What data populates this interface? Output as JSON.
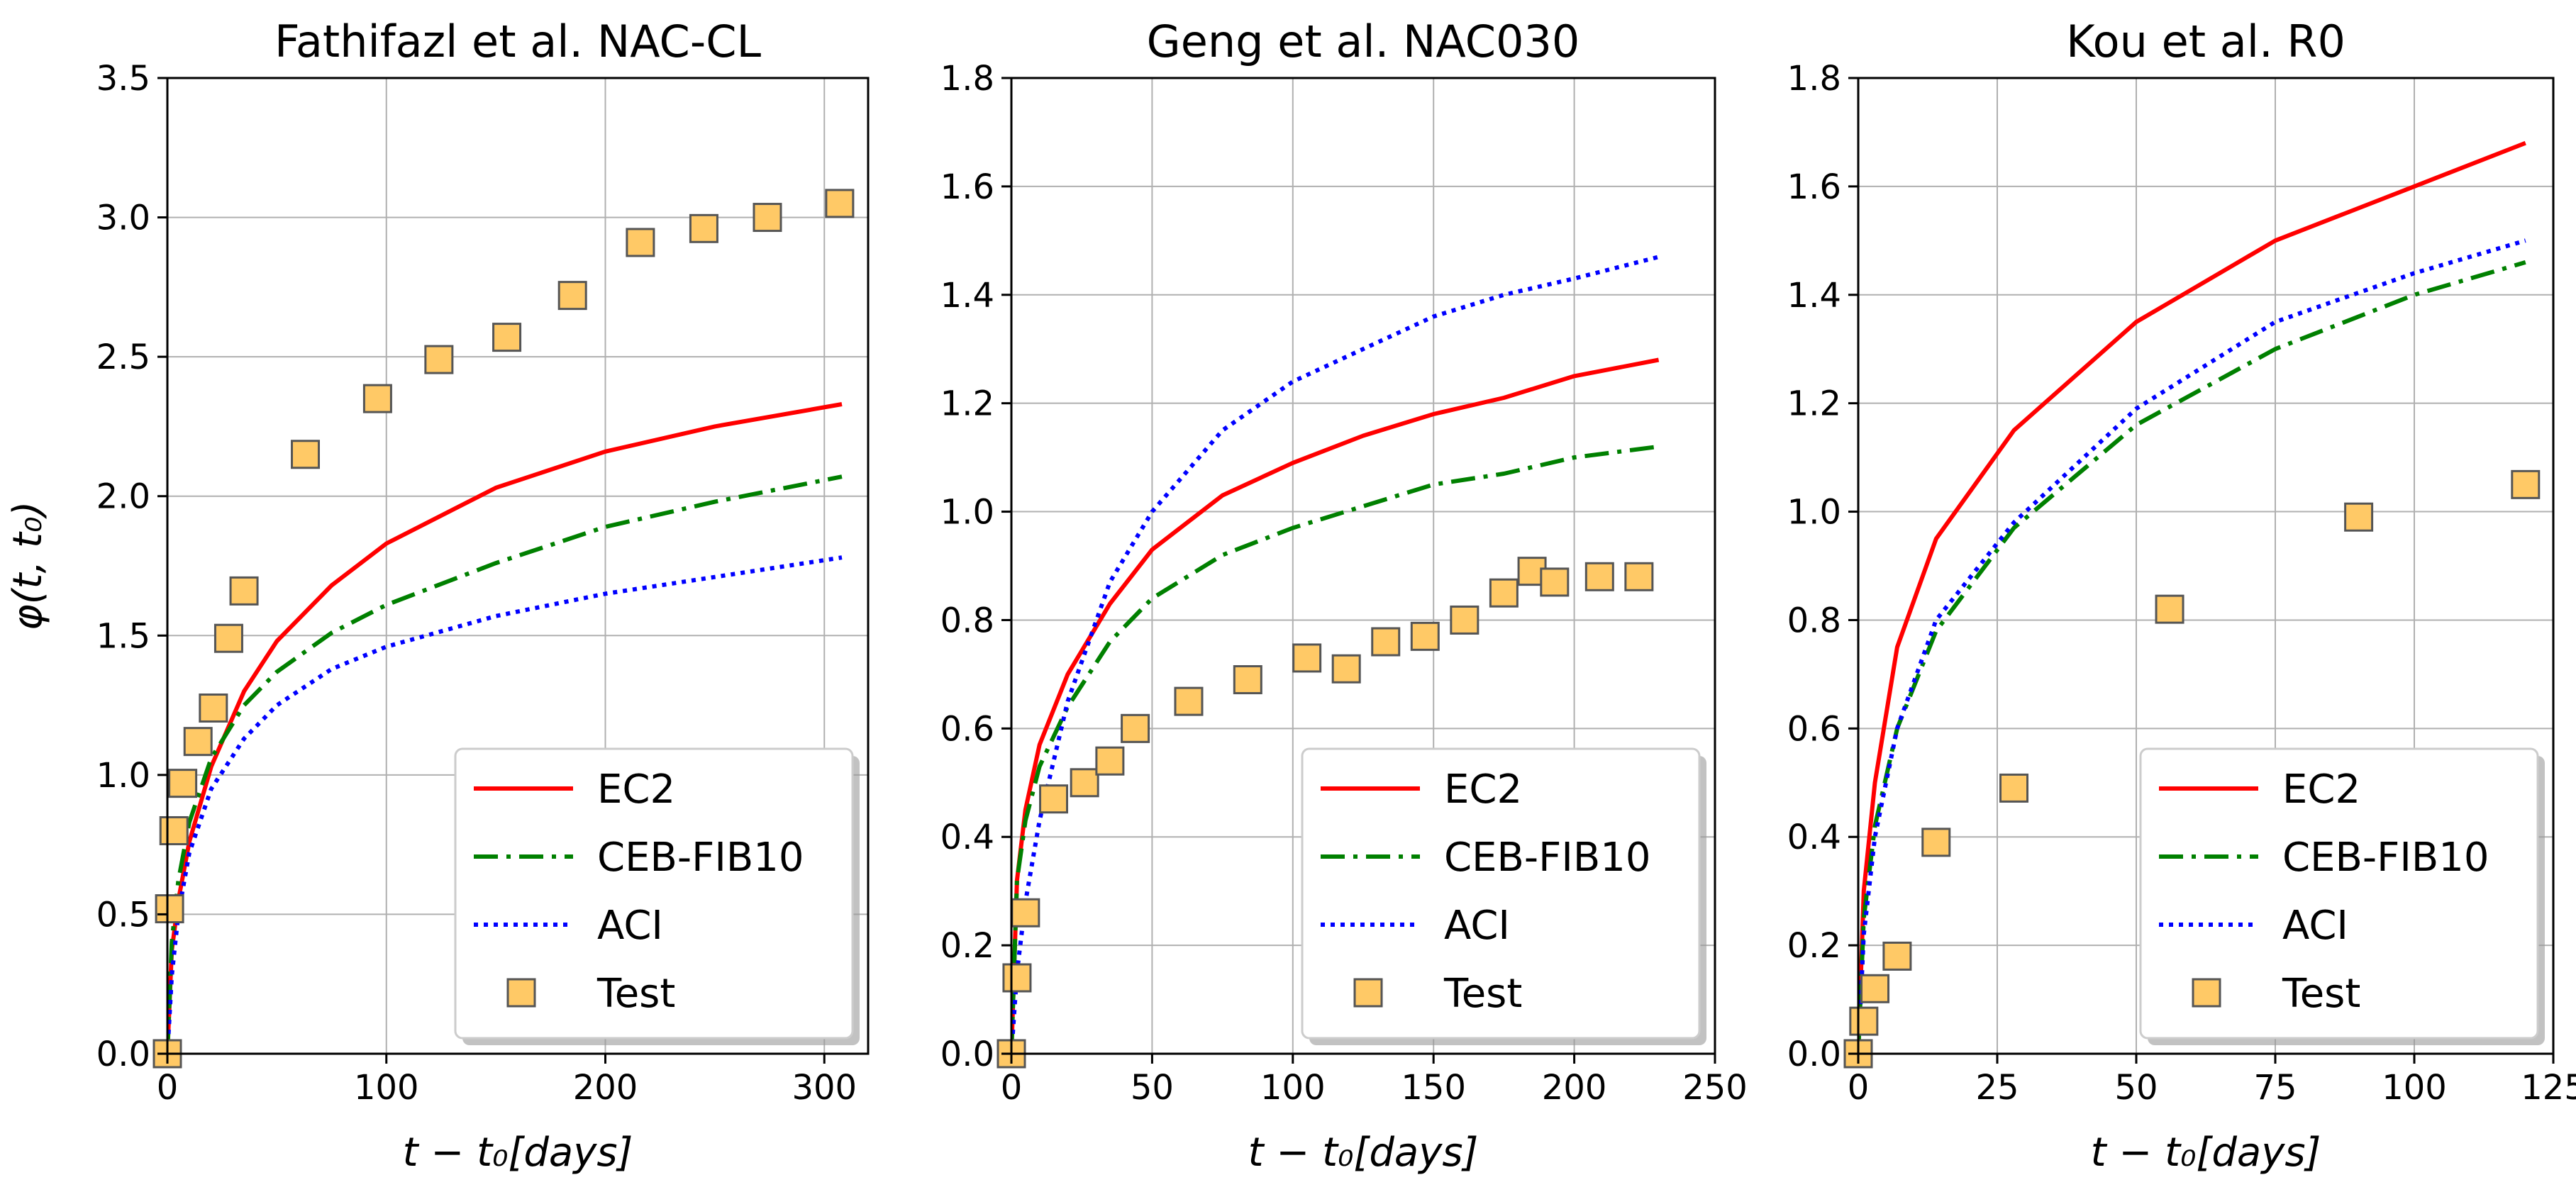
{
  "chart_data": [
    {
      "type": "line",
      "title": "Fathifazl et al.  NAC-CL",
      "xlabel": "t − t₀[days]",
      "ylabel": "φ(t, t₀)",
      "xlim": [
        0,
        320
      ],
      "ylim": [
        0,
        3.5
      ],
      "xticks": [
        0,
        100,
        200,
        300
      ],
      "yticks": [
        "0.0",
        "0.5",
        "1.0",
        "1.5",
        "2.0",
        "2.5",
        "3.0",
        "3.5"
      ],
      "grid": true,
      "legend_position": "bottom-right",
      "series": [
        {
          "name": "EC2",
          "style": "solid",
          "color": "#ff0000",
          "x": [
            0,
            2,
            5,
            10,
            20,
            35,
            50,
            75,
            100,
            150,
            200,
            250,
            308
          ],
          "y": [
            0,
            0.37,
            0.55,
            0.76,
            1.03,
            1.3,
            1.48,
            1.68,
            1.83,
            2.03,
            2.16,
            2.25,
            2.33
          ]
        },
        {
          "name": "CEB-FIB10",
          "style": "dashdot",
          "color": "#008000",
          "x": [
            0,
            2,
            5,
            10,
            20,
            35,
            50,
            75,
            100,
            150,
            200,
            250,
            308
          ],
          "y": [
            0,
            0.4,
            0.62,
            0.83,
            1.06,
            1.25,
            1.37,
            1.51,
            1.61,
            1.76,
            1.89,
            1.98,
            2.07
          ]
        },
        {
          "name": "ACI",
          "style": "dotted",
          "color": "#0000ff",
          "x": [
            0,
            2,
            5,
            10,
            20,
            35,
            50,
            75,
            100,
            150,
            200,
            250,
            308
          ],
          "y": [
            0,
            0.28,
            0.5,
            0.72,
            0.95,
            1.13,
            1.25,
            1.38,
            1.46,
            1.57,
            1.65,
            1.71,
            1.78
          ]
        },
        {
          "name": "Test",
          "style": "marker",
          "color": "#ffc966",
          "x": [
            0,
            1,
            3,
            7,
            14,
            21,
            28,
            35,
            63,
            96,
            124,
            155,
            185,
            216,
            245,
            274,
            307
          ],
          "y": [
            0,
            0.52,
            0.8,
            0.97,
            1.12,
            1.24,
            1.49,
            1.66,
            2.15,
            2.35,
            2.49,
            2.57,
            2.72,
            2.91,
            2.96,
            3.0,
            3.05
          ]
        }
      ]
    },
    {
      "type": "line",
      "title": "Geng et al.  NAC030",
      "xlabel": "t − t₀[days]",
      "ylabel": "",
      "xlim": [
        0,
        250
      ],
      "ylim": [
        0,
        1.8
      ],
      "xticks": [
        0,
        50,
        100,
        150,
        200,
        250
      ],
      "yticks": [
        "0.0",
        "0.2",
        "0.4",
        "0.6",
        "0.8",
        "1.0",
        "1.2",
        "1.4",
        "1.6",
        "1.8"
      ],
      "grid": true,
      "legend_position": "bottom-right",
      "series": [
        {
          "name": "EC2",
          "style": "solid",
          "color": "#ff0000",
          "x": [
            0,
            2,
            5,
            10,
            20,
            35,
            50,
            75,
            100,
            125,
            150,
            175,
            200,
            230
          ],
          "y": [
            0,
            0.32,
            0.45,
            0.57,
            0.7,
            0.83,
            0.93,
            1.03,
            1.09,
            1.14,
            1.18,
            1.21,
            1.25,
            1.28
          ]
        },
        {
          "name": "CEB-FIB10",
          "style": "dashdot",
          "color": "#008000",
          "x": [
            0,
            2,
            5,
            10,
            20,
            35,
            50,
            75,
            100,
            125,
            150,
            175,
            200,
            230
          ],
          "y": [
            0,
            0.32,
            0.43,
            0.53,
            0.64,
            0.76,
            0.84,
            0.92,
            0.97,
            1.01,
            1.05,
            1.07,
            1.1,
            1.12
          ]
        },
        {
          "name": "ACI",
          "style": "dotted",
          "color": "#0000ff",
          "x": [
            0,
            2,
            5,
            10,
            20,
            35,
            50,
            75,
            100,
            125,
            150,
            175,
            200,
            230
          ],
          "y": [
            0,
            0.15,
            0.28,
            0.43,
            0.65,
            0.87,
            1.0,
            1.15,
            1.24,
            1.3,
            1.36,
            1.4,
            1.43,
            1.47
          ]
        },
        {
          "name": "Test",
          "style": "marker",
          "color": "#ffc966",
          "x": [
            0,
            2,
            5,
            15,
            26,
            35,
            44,
            63,
            84,
            105,
            119,
            133,
            147,
            161,
            175,
            185,
            193,
            209,
            223
          ],
          "y": [
            0,
            0.14,
            0.26,
            0.47,
            0.5,
            0.54,
            0.6,
            0.65,
            0.69,
            0.73,
            0.71,
            0.76,
            0.77,
            0.8,
            0.85,
            0.89,
            0.87,
            0.88,
            0.88
          ]
        }
      ]
    },
    {
      "type": "line",
      "title": "Kou et al.  R0",
      "xlabel": "t − t₀[days]",
      "ylabel": "",
      "xlim": [
        0,
        125
      ],
      "ylim": [
        0,
        1.8
      ],
      "xticks": [
        0,
        25,
        50,
        75,
        100,
        125
      ],
      "yticks": [
        "0.0",
        "0.2",
        "0.4",
        "0.6",
        "0.8",
        "1.0",
        "1.2",
        "1.4",
        "1.6",
        "1.8"
      ],
      "grid": true,
      "legend_position": "bottom-right",
      "series": [
        {
          "name": "EC2",
          "style": "solid",
          "color": "#ff0000",
          "x": [
            0,
            1,
            3,
            7,
            14,
            28,
            50,
            75,
            100,
            120
          ],
          "y": [
            0,
            0.3,
            0.5,
            0.75,
            0.95,
            1.15,
            1.35,
            1.5,
            1.6,
            1.68
          ]
        },
        {
          "name": "CEB-FIB10",
          "style": "dashdot",
          "color": "#008000",
          "x": [
            0,
            1,
            3,
            7,
            14,
            28,
            50,
            75,
            100,
            120
          ],
          "y": [
            0,
            0.25,
            0.42,
            0.6,
            0.78,
            0.97,
            1.16,
            1.3,
            1.4,
            1.46
          ]
        },
        {
          "name": "ACI",
          "style": "dotted",
          "color": "#0000ff",
          "x": [
            0,
            1,
            3,
            7,
            14,
            28,
            50,
            75,
            100,
            120
          ],
          "y": [
            0,
            0.22,
            0.4,
            0.6,
            0.8,
            0.98,
            1.19,
            1.35,
            1.44,
            1.5
          ]
        },
        {
          "name": "Test",
          "style": "marker",
          "color": "#ffc966",
          "x": [
            0,
            1,
            3,
            7,
            14,
            28,
            56,
            90,
            120
          ],
          "y": [
            0,
            0.06,
            0.12,
            0.18,
            0.39,
            0.49,
            0.82,
            0.99,
            1.05
          ]
        }
      ]
    }
  ]
}
